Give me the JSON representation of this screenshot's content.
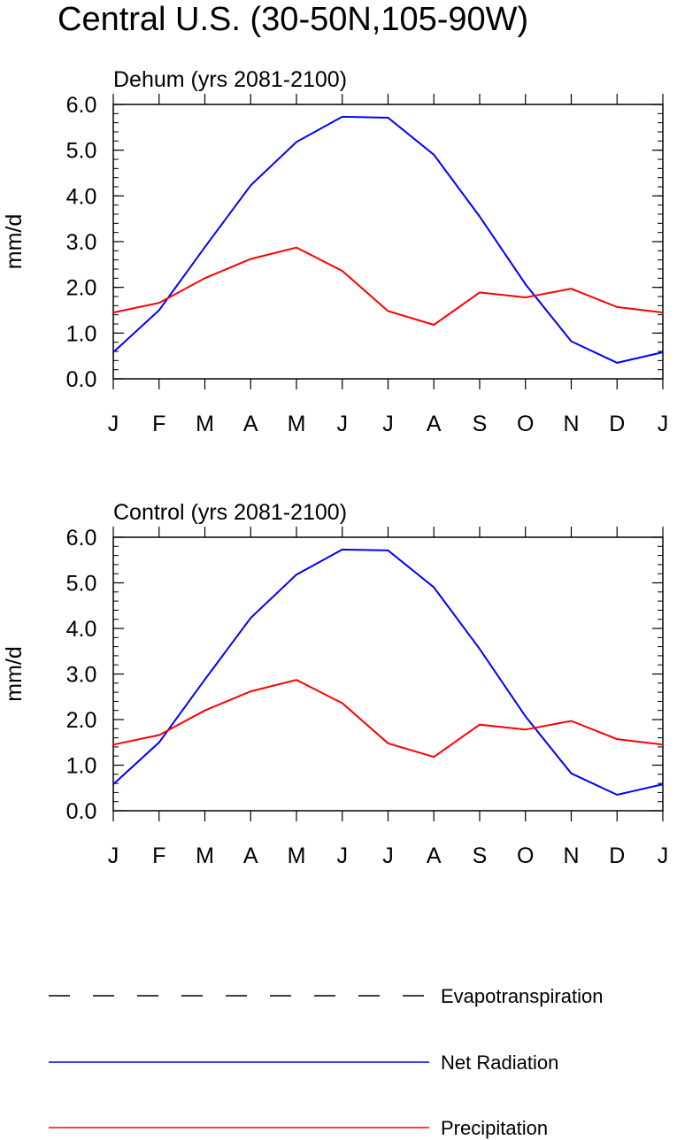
{
  "title": "Central U.S. (30-50N,105-90W)",
  "colors": {
    "net_radiation": "#0000ff",
    "precipitation": "#ff0000",
    "evapotranspiration": "#000000"
  },
  "legend": {
    "items": [
      {
        "label": "Evapotranspiration",
        "style": "dashed",
        "color": "#000000"
      },
      {
        "label": "Net Radiation",
        "style": "solid",
        "color": "#0000ff"
      },
      {
        "label": "Precipitation",
        "style": "solid",
        "color": "#ff0000"
      }
    ]
  },
  "chart_data": [
    {
      "type": "line",
      "title": "Dehum (yrs 2081-2100)",
      "xlabel": "",
      "ylabel": "mm/d",
      "ylim": [
        0,
        6
      ],
      "yticks": [
        "0.0",
        "1.0",
        "2.0",
        "3.0",
        "4.0",
        "5.0",
        "6.0"
      ],
      "categories": [
        "J",
        "F",
        "M",
        "A",
        "M",
        "J",
        "J",
        "A",
        "S",
        "O",
        "N",
        "D",
        "J"
      ],
      "series": [
        {
          "name": "Net Radiation",
          "values": [
            0.58,
            1.5,
            2.88,
            4.23,
            5.18,
            5.73,
            5.71,
            4.9,
            3.55,
            2.07,
            0.82,
            0.35,
            0.58
          ]
        },
        {
          "name": "Precipitation",
          "values": [
            1.45,
            1.66,
            2.2,
            2.62,
            2.87,
            2.36,
            1.48,
            1.18,
            1.89,
            1.78,
            1.97,
            1.57,
            1.45
          ]
        }
      ]
    },
    {
      "type": "line",
      "title": "Control (yrs 2081-2100)",
      "xlabel": "",
      "ylabel": "mm/d",
      "ylim": [
        0,
        6
      ],
      "yticks": [
        "0.0",
        "1.0",
        "2.0",
        "3.0",
        "4.0",
        "5.0",
        "6.0"
      ],
      "categories": [
        "J",
        "F",
        "M",
        "A",
        "M",
        "J",
        "J",
        "A",
        "S",
        "O",
        "N",
        "D",
        "J"
      ],
      "series": [
        {
          "name": "Net Radiation",
          "values": [
            0.58,
            1.5,
            2.88,
            4.23,
            5.18,
            5.73,
            5.71,
            4.9,
            3.55,
            2.07,
            0.82,
            0.35,
            0.58
          ]
        },
        {
          "name": "Precipitation",
          "values": [
            1.45,
            1.66,
            2.2,
            2.62,
            2.87,
            2.36,
            1.48,
            1.18,
            1.89,
            1.78,
            1.97,
            1.57,
            1.45
          ]
        }
      ]
    }
  ]
}
